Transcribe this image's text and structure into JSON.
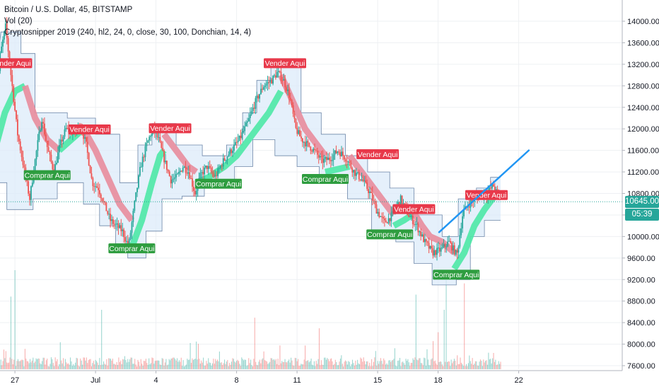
{
  "legend": {
    "symbol": "Bitcoin / U.S. Dollar, 45, BITSTAMP",
    "volume": "Vol (20)",
    "indicator": "Cryptosnipper 2019 (240, hl2, 24, 0, close, 30, 100, Donchian, 14, 4)"
  },
  "price_tag": {
    "price": "10645.00",
    "countdown": "05:39",
    "color": "#26a69a"
  },
  "colors": {
    "up": "#26a69a",
    "down": "#ef5350",
    "grid": "#eef0f3",
    "band_fill": "#dcebfa",
    "band_line": "#6d86a8",
    "trail_up": "#4de8a6",
    "trail_down": "#e88c9c",
    "buy": "#2e9d3f",
    "sell": "#e8394a",
    "trendline": "#2196f3"
  },
  "chart_data": {
    "type": "candlestick",
    "ylim": [
      7400,
      14400
    ],
    "y_ticks": [
      "14000.00",
      "13600.00",
      "13200.00",
      "12800.00",
      "12400.00",
      "12000.00",
      "11600.00",
      "11200.00",
      "10800.00",
      "10400.00",
      "10000.00",
      "9600.00",
      "9200.00",
      "8800.00",
      "8400.00",
      "8000.00",
      "7600.00"
    ],
    "y_tick_values": [
      14000,
      13600,
      13200,
      12800,
      12400,
      12000,
      11600,
      11200,
      10800,
      10400,
      10000,
      9600,
      9200,
      8800,
      8400,
      8000,
      7600
    ],
    "x_ticks": [
      "27",
      "Jul",
      "4",
      "8",
      "11",
      "15",
      "18",
      "22"
    ],
    "x_tick_days": [
      27,
      31,
      34,
      38,
      41,
      45,
      48,
      52
    ],
    "x_note": "x values are days counted from Jun 1; 31 = Jul 1",
    "price_line": 10645,
    "price_path": [
      [
        26.0,
        11200
      ],
      [
        26.3,
        13300
      ],
      [
        26.6,
        13900
      ],
      [
        26.9,
        12900
      ],
      [
        27.2,
        11900
      ],
      [
        27.5,
        11300
      ],
      [
        27.8,
        10700
      ],
      [
        28.1,
        11500
      ],
      [
        28.4,
        12200
      ],
      [
        28.7,
        11600
      ],
      [
        29.0,
        11200
      ],
      [
        29.3,
        11700
      ],
      [
        29.6,
        12000
      ],
      [
        30.0,
        11900
      ],
      [
        30.3,
        12100
      ],
      [
        30.6,
        11700
      ],
      [
        30.9,
        11000
      ],
      [
        31.2,
        10900
      ],
      [
        31.5,
        10600
      ],
      [
        31.8,
        10300
      ],
      [
        32.1,
        10200
      ],
      [
        32.4,
        10100
      ],
      [
        32.7,
        9800
      ],
      [
        33.0,
        10600
      ],
      [
        33.3,
        11300
      ],
      [
        33.6,
        11700
      ],
      [
        33.9,
        12000
      ],
      [
        34.2,
        11800
      ],
      [
        34.5,
        11400
      ],
      [
        34.8,
        11050
      ],
      [
        35.1,
        11100
      ],
      [
        35.4,
        11300
      ],
      [
        35.7,
        11200
      ],
      [
        36.0,
        10800
      ],
      [
        36.3,
        11150
      ],
      [
        36.6,
        11300
      ],
      [
        37.0,
        11100
      ],
      [
        37.4,
        11400
      ],
      [
        37.8,
        11600
      ],
      [
        38.2,
        11800
      ],
      [
        38.6,
        12100
      ],
      [
        39.0,
        12500
      ],
      [
        39.4,
        12800
      ],
      [
        39.8,
        12900
      ],
      [
        40.1,
        13050
      ],
      [
        40.4,
        12900
      ],
      [
        40.7,
        12600
      ],
      [
        41.0,
        12000
      ],
      [
        41.3,
        11800
      ],
      [
        41.6,
        11700
      ],
      [
        41.9,
        11600
      ],
      [
        42.3,
        11400
      ],
      [
        42.7,
        11450
      ],
      [
        43.1,
        11600
      ],
      [
        43.5,
        11450
      ],
      [
        43.9,
        11200
      ],
      [
        44.3,
        11050
      ],
      [
        44.7,
        10800
      ],
      [
        45.0,
        10500
      ],
      [
        45.4,
        10250
      ],
      [
        45.8,
        10400
      ],
      [
        46.2,
        10700
      ],
      [
        46.6,
        10400
      ],
      [
        47.0,
        10200
      ],
      [
        47.4,
        9900
      ],
      [
        47.8,
        9700
      ],
      [
        48.2,
        9750
      ],
      [
        48.6,
        9900
      ],
      [
        49.0,
        9650
      ],
      [
        49.3,
        10450
      ],
      [
        49.7,
        10650
      ],
      [
        50.1,
        10750
      ],
      [
        50.5,
        10800
      ],
      [
        50.8,
        10950
      ],
      [
        51.1,
        10700
      ]
    ],
    "donchian_bands": {
      "upper": [
        [
          26.0,
          12800
        ],
        [
          26.3,
          13800
        ],
        [
          27.3,
          13800
        ],
        [
          27.3,
          13400
        ],
        [
          28.0,
          13400
        ],
        [
          28.0,
          12300
        ],
        [
          29.6,
          12300
        ],
        [
          29.6,
          12200
        ],
        [
          31.0,
          12200
        ],
        [
          31.0,
          11900
        ],
        [
          32.2,
          11900
        ],
        [
          32.2,
          11000
        ],
        [
          33.1,
          11000
        ],
        [
          33.1,
          11700
        ],
        [
          33.8,
          11700
        ],
        [
          33.8,
          12100
        ],
        [
          35.0,
          12100
        ],
        [
          35.0,
          11700
        ],
        [
          36.3,
          11700
        ],
        [
          36.3,
          11500
        ],
        [
          37.5,
          11500
        ],
        [
          37.5,
          11700
        ],
        [
          38.3,
          11700
        ],
        [
          38.3,
          12300
        ],
        [
          39.0,
          12300
        ],
        [
          39.0,
          12900
        ],
        [
          39.7,
          12900
        ],
        [
          39.7,
          13200
        ],
        [
          41.2,
          13200
        ],
        [
          41.2,
          12300
        ],
        [
          42.2,
          12300
        ],
        [
          42.2,
          11900
        ],
        [
          43.4,
          11900
        ],
        [
          43.4,
          11500
        ],
        [
          44.5,
          11500
        ],
        [
          44.5,
          11200
        ],
        [
          45.6,
          11200
        ],
        [
          45.6,
          10900
        ],
        [
          46.8,
          10900
        ],
        [
          46.8,
          10400
        ],
        [
          48.2,
          10400
        ],
        [
          48.2,
          10000
        ],
        [
          49.0,
          10000
        ],
        [
          49.0,
          10700
        ],
        [
          49.9,
          10700
        ],
        [
          49.9,
          10900
        ],
        [
          50.6,
          10900
        ],
        [
          50.6,
          11100
        ],
        [
          51.1,
          11100
        ]
      ],
      "lower": [
        [
          26.0,
          11000
        ],
        [
          26.6,
          11000
        ],
        [
          26.6,
          10500
        ],
        [
          27.9,
          10500
        ],
        [
          27.9,
          10700
        ],
        [
          29.1,
          10700
        ],
        [
          29.1,
          11000
        ],
        [
          30.4,
          11000
        ],
        [
          30.4,
          10600
        ],
        [
          31.2,
          10600
        ],
        [
          31.2,
          10200
        ],
        [
          32.0,
          10200
        ],
        [
          32.0,
          9800
        ],
        [
          32.6,
          9800
        ],
        [
          32.6,
          9600
        ],
        [
          33.5,
          9600
        ],
        [
          33.5,
          10100
        ],
        [
          34.3,
          10100
        ],
        [
          34.3,
          10700
        ],
        [
          35.3,
          10700
        ],
        [
          35.3,
          10750
        ],
        [
          36.4,
          10750
        ],
        [
          36.4,
          10900
        ],
        [
          37.9,
          10900
        ],
        [
          37.9,
          11300
        ],
        [
          38.8,
          11300
        ],
        [
          38.8,
          11800
        ],
        [
          39.9,
          11800
        ],
        [
          39.9,
          11500
        ],
        [
          41.0,
          11500
        ],
        [
          41.0,
          11300
        ],
        [
          42.1,
          11300
        ],
        [
          42.1,
          11050
        ],
        [
          43.5,
          11050
        ],
        [
          43.5,
          10700
        ],
        [
          44.7,
          10700
        ],
        [
          44.7,
          10100
        ],
        [
          45.9,
          10100
        ],
        [
          45.9,
          9900
        ],
        [
          46.8,
          9900
        ],
        [
          46.8,
          9500
        ],
        [
          47.7,
          9500
        ],
        [
          47.7,
          9100
        ],
        [
          48.9,
          9100
        ],
        [
          48.9,
          9200
        ],
        [
          49.6,
          9200
        ],
        [
          49.6,
          10000
        ],
        [
          50.3,
          10000
        ],
        [
          50.3,
          10300
        ],
        [
          51.1,
          10300
        ]
      ]
    },
    "trail_segments": [
      {
        "dir": "up",
        "points": [
          [
            26.0,
            11600
          ],
          [
            26.5,
            12300
          ],
          [
            27.0,
            12700
          ],
          [
            27.5,
            12800
          ]
        ]
      },
      {
        "dir": "down",
        "points": [
          [
            27.5,
            12800
          ],
          [
            28.0,
            12200
          ],
          [
            28.6,
            11800
          ],
          [
            29.2,
            11600
          ]
        ]
      },
      {
        "dir": "up",
        "points": [
          [
            29.2,
            11600
          ],
          [
            29.8,
            11800
          ],
          [
            30.4,
            12000
          ]
        ]
      },
      {
        "dir": "down",
        "points": [
          [
            30.4,
            12000
          ],
          [
            31.0,
            11600
          ],
          [
            31.6,
            11100
          ],
          [
            32.2,
            10600
          ],
          [
            32.8,
            10300
          ]
        ]
      },
      {
        "dir": "up",
        "points": [
          [
            32.8,
            9800
          ],
          [
            33.3,
            10300
          ],
          [
            33.8,
            11000
          ],
          [
            34.2,
            11500
          ],
          [
            34.4,
            11600
          ]
        ]
      },
      {
        "dir": "down",
        "points": [
          [
            34.4,
            11900
          ],
          [
            35.0,
            11600
          ],
          [
            35.6,
            11300
          ],
          [
            36.0,
            11200
          ]
        ]
      },
      {
        "dir": "up",
        "points": [
          [
            36.0,
            11000
          ],
          [
            36.6,
            11100
          ],
          [
            37.4,
            11300
          ],
          [
            38.0,
            11500
          ],
          [
            38.8,
            11900
          ],
          [
            39.6,
            12300
          ],
          [
            40.2,
            12700
          ]
        ]
      },
      {
        "dir": "down",
        "points": [
          [
            40.2,
            13000
          ],
          [
            40.8,
            12500
          ],
          [
            41.4,
            12000
          ],
          [
            42.0,
            11700
          ],
          [
            42.4,
            11500
          ]
        ]
      },
      {
        "dir": "up",
        "points": [
          [
            42.4,
            11200
          ],
          [
            43.0,
            11250
          ],
          [
            43.6,
            11300
          ]
        ]
      },
      {
        "dir": "down",
        "points": [
          [
            43.6,
            11500
          ],
          [
            44.2,
            11200
          ],
          [
            44.8,
            10900
          ],
          [
            45.3,
            10650
          ],
          [
            45.8,
            10400
          ]
        ]
      },
      {
        "dir": "up",
        "points": [
          [
            45.8,
            10200
          ],
          [
            46.3,
            10300
          ],
          [
            46.7,
            10400
          ]
        ]
      },
      {
        "dir": "down",
        "points": [
          [
            46.7,
            10500
          ],
          [
            47.2,
            10200
          ],
          [
            47.6,
            10000
          ],
          [
            48.2,
            9900
          ],
          [
            48.8,
            9700
          ]
        ]
      },
      {
        "dir": "up",
        "points": [
          [
            48.8,
            9400
          ],
          [
            49.3,
            9700
          ],
          [
            49.8,
            10200
          ],
          [
            50.3,
            10500
          ],
          [
            50.8,
            10750
          ],
          [
            51.0,
            10800
          ]
        ]
      }
    ],
    "signals": [
      {
        "type": "sell",
        "label": "Vender Aqui",
        "x": 26.8,
        "price": 13220
      },
      {
        "type": "buy",
        "label": "Comprar Aqui",
        "x": 28.6,
        "price": 11140
      },
      {
        "type": "sell",
        "label": "Vender Aqui",
        "x": 30.7,
        "price": 11990
      },
      {
        "type": "buy",
        "label": "Comprar Aqui",
        "x": 32.8,
        "price": 9780
      },
      {
        "type": "sell",
        "label": "Vender Aqui",
        "x": 34.7,
        "price": 12010
      },
      {
        "type": "buy",
        "label": "Comprar Aqui",
        "x": 37.1,
        "price": 10980
      },
      {
        "type": "sell",
        "label": "Vender Aqui",
        "x": 40.4,
        "price": 13220
      },
      {
        "type": "buy",
        "label": "Comprar Aqui",
        "x": 42.4,
        "price": 11070
      },
      {
        "type": "sell",
        "label": "Vender Aqui",
        "x": 45.0,
        "price": 11530
      },
      {
        "type": "sell",
        "label": "Vender Aqui",
        "x": 46.8,
        "price": 10510
      },
      {
        "type": "buy",
        "label": "Comprar Aqui",
        "x": 45.6,
        "price": 10040
      },
      {
        "type": "buy",
        "label": "Comprar Aqui",
        "x": 48.9,
        "price": 9290
      },
      {
        "type": "sell",
        "label": "Vender Aqui",
        "x": 50.4,
        "price": 10770
      }
    ],
    "trendline": [
      [
        48.05,
        10080
      ],
      [
        52.5,
        11600
      ]
    ],
    "volume": {
      "ylim": [
        0,
        2000
      ],
      "typical": [
        40,
        180
      ],
      "spikes": [
        [
          26.8,
          1100
        ],
        [
          27.0,
          1500
        ],
        [
          31.3,
          900
        ],
        [
          38.9,
          780
        ],
        [
          42.1,
          620
        ],
        [
          46.9,
          1130
        ],
        [
          48.0,
          560
        ],
        [
          48.3,
          900
        ],
        [
          48.4,
          1350
        ],
        [
          49.3,
          1300
        ]
      ]
    }
  }
}
